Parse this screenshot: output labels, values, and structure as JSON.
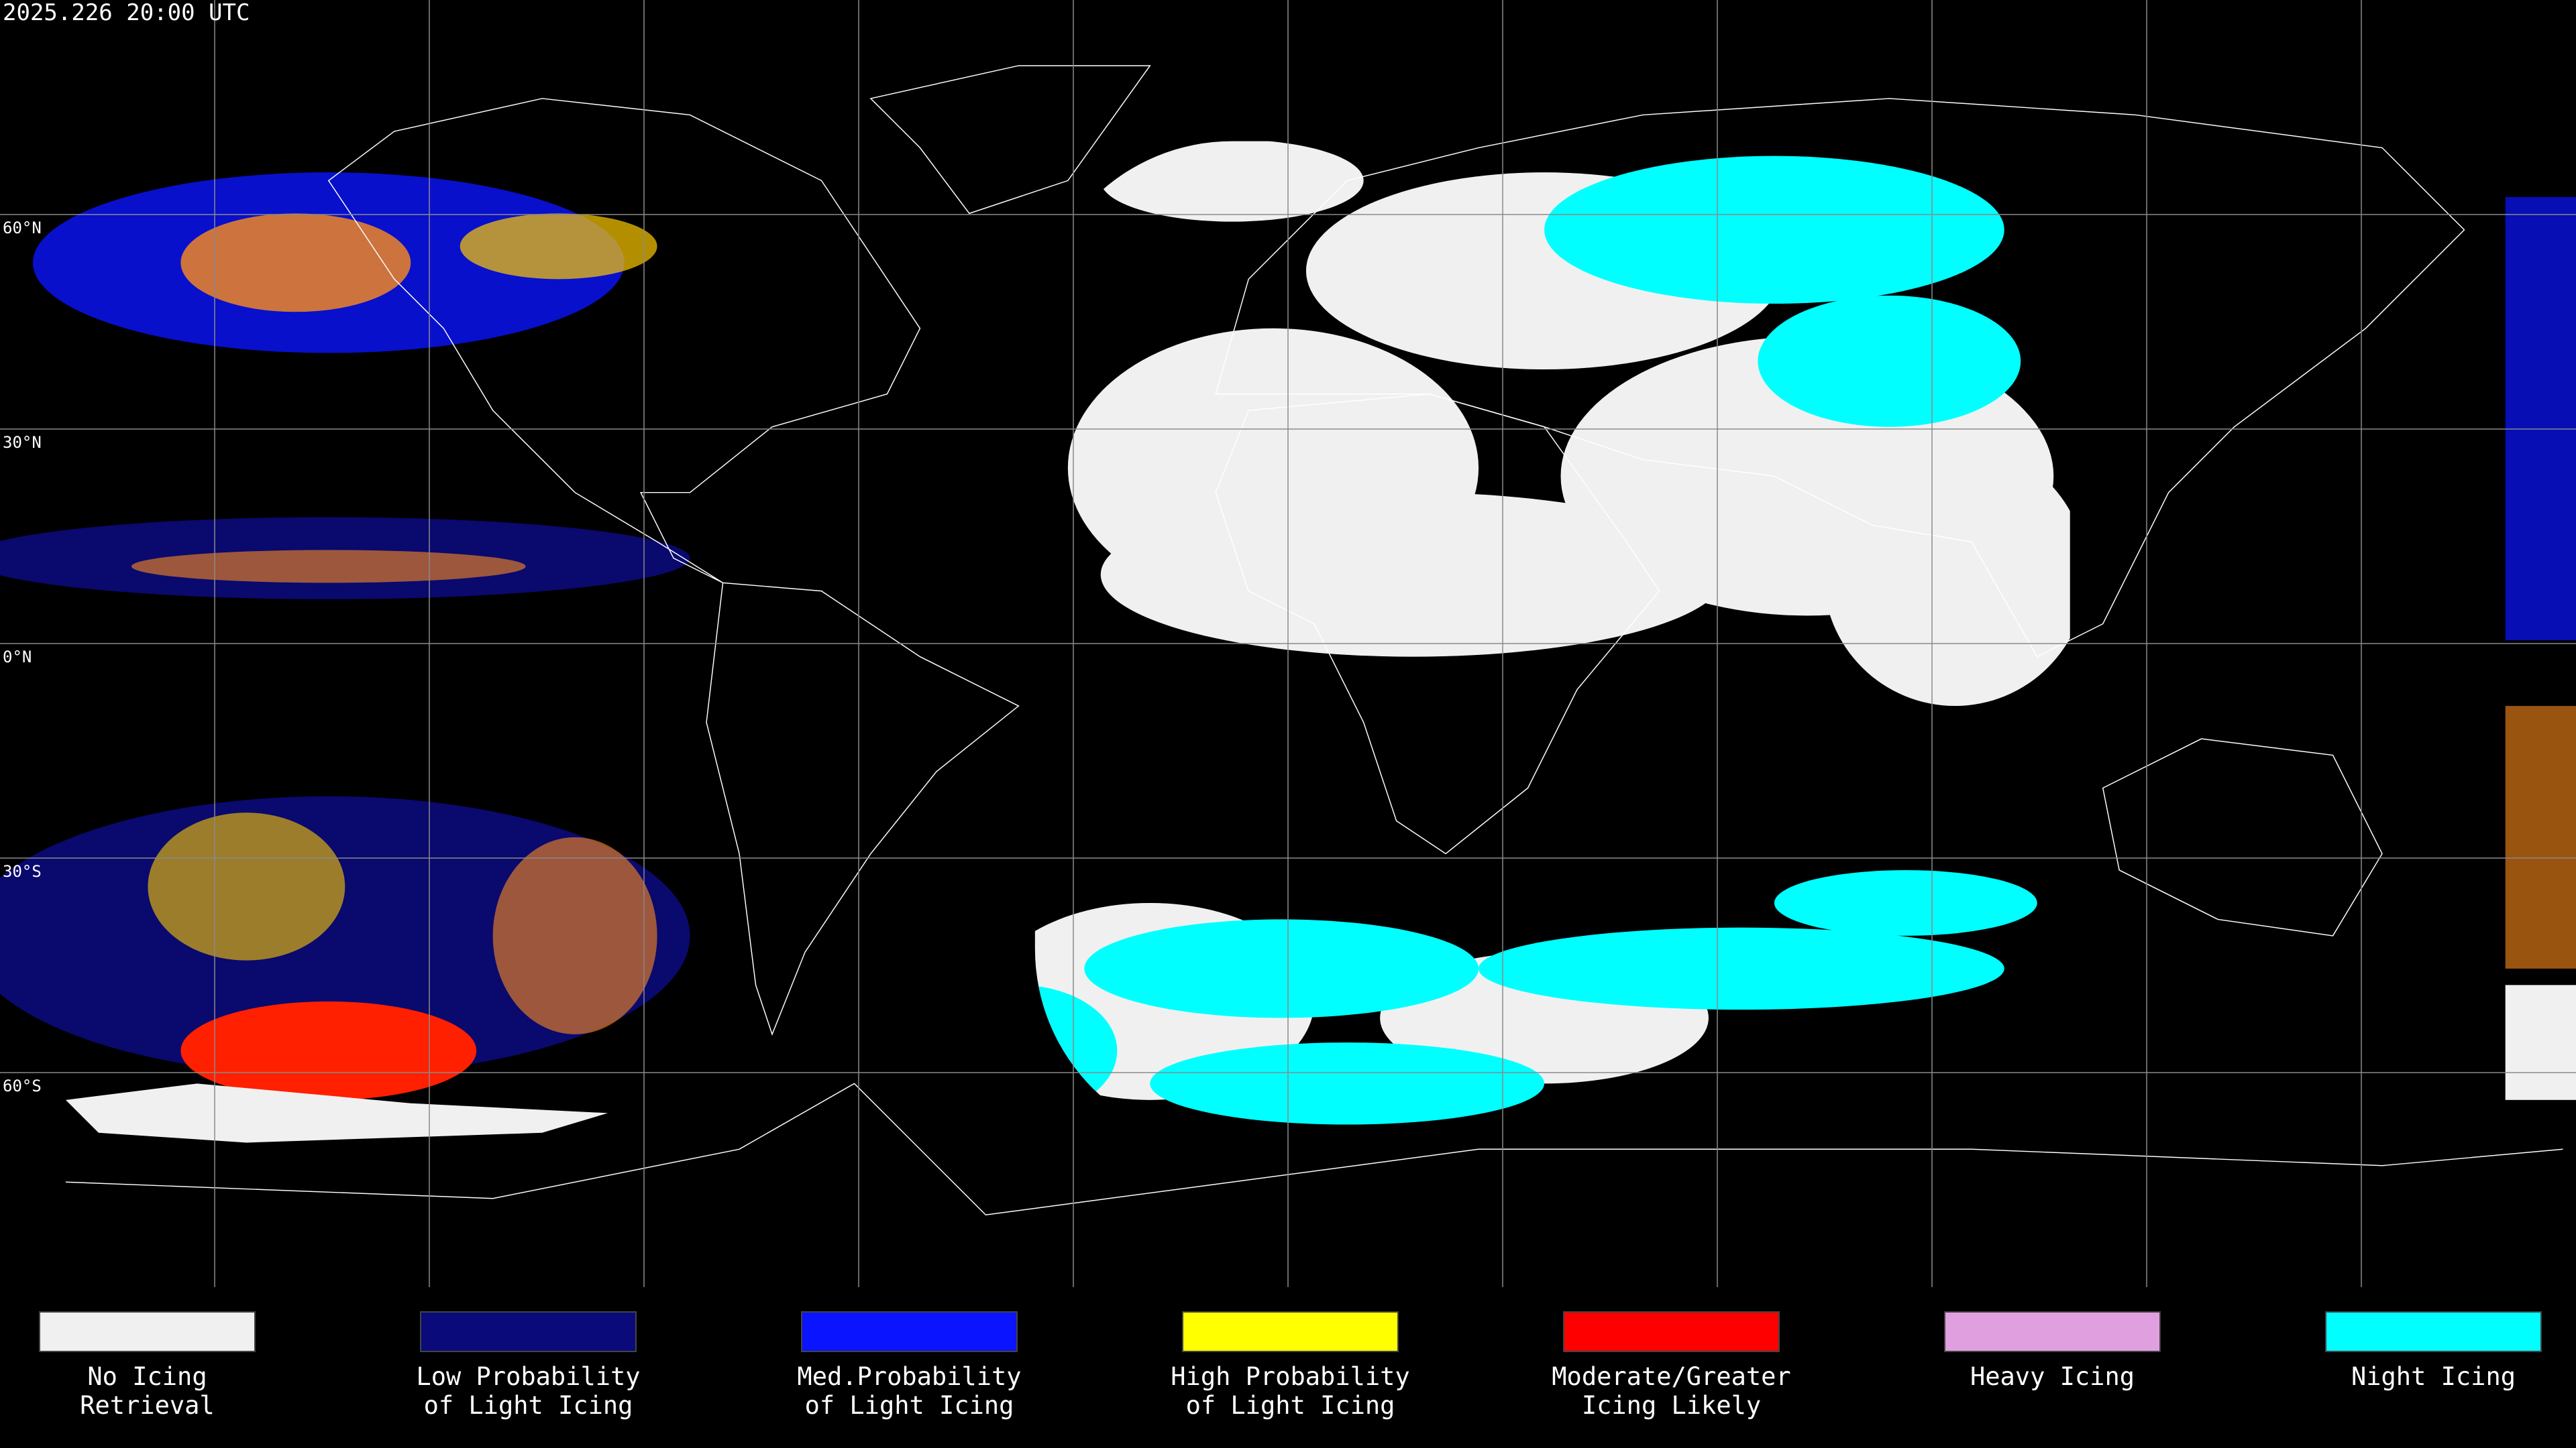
{
  "header": {
    "timestamp": "2025.226 20:00 UTC"
  },
  "map": {
    "lat_labels": [
      "60°N",
      "30°N",
      "0°N",
      "30°S",
      "60°S"
    ]
  },
  "legend": {
    "items": [
      {
        "lines": [
          "No Icing",
          "Retrieval"
        ],
        "color": "#f0f0f0"
      },
      {
        "lines": [
          "Low Probability",
          "of Light Icing"
        ],
        "color": "#0a0a7a"
      },
      {
        "lines": [
          "Med.Probability",
          "of Light Icing"
        ],
        "color": "#0a14ff"
      },
      {
        "lines": [
          "High Probability",
          "of Light Icing"
        ],
        "color": "#ffff00"
      },
      {
        "lines": [
          "Moderate/Greater",
          "Icing Likely"
        ],
        "color": "#ff0000"
      },
      {
        "lines": [
          "Heavy Icing"
        ],
        "color": "#e0a0e0"
      },
      {
        "lines": [
          "Night Icing"
        ],
        "color": "#00ffff"
      }
    ]
  }
}
